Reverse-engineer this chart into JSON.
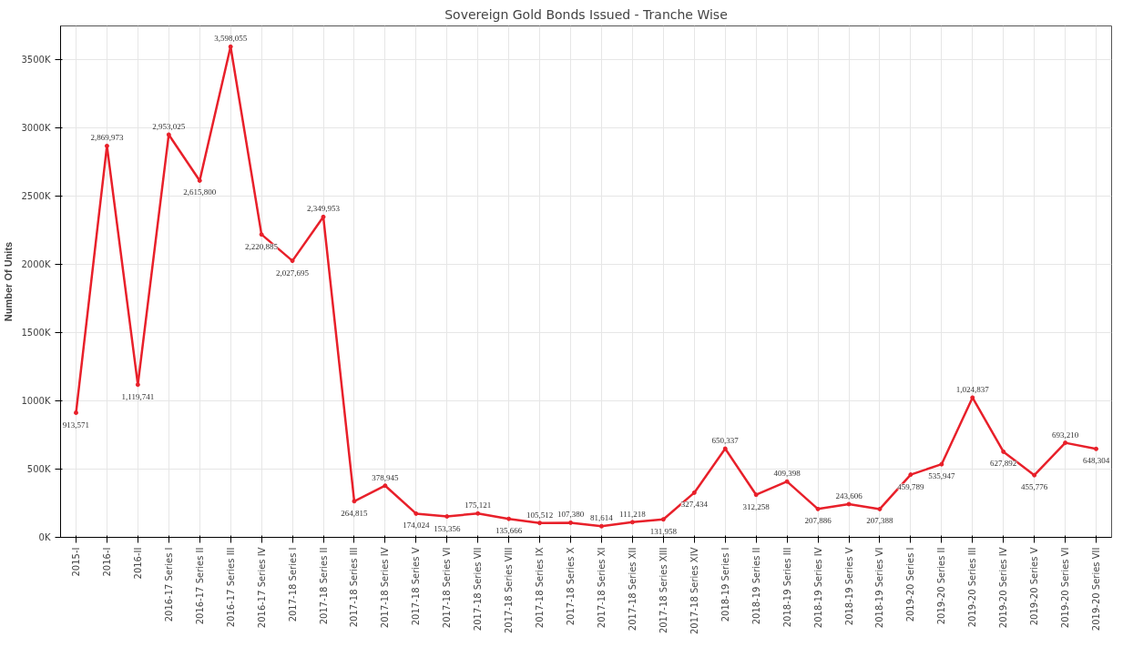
{
  "chart_data": {
    "type": "line",
    "title": "Sovereign Gold Bonds Issued - Tranche Wise",
    "ylabel": "Number Of Units",
    "categories": [
      "2015-I",
      "2016-I",
      "2016-II",
      "2016-17 Series I",
      "2016-17 Series II",
      "2016-17 Series III",
      "2016-17 Series IV",
      "2017-18 Series I",
      "2017-18 Series II",
      "2017-18 Series III",
      "2017-18 Series IV",
      "2017-18 Series V",
      "2017-18 Series VI",
      "2017-18 Series VII",
      "2017-18 Series VIII",
      "2017-18 Series IX",
      "2017-18 Series X",
      "2017-18 Series XI",
      "2017-18 Series XII",
      "2017-18 Series XIII",
      "2017-18 Series XIV",
      "2018-19 Series I",
      "2018-19 Series II",
      "2018-19 Series III",
      "2018-19 Series IV",
      "2018-19 Series V",
      "2018-19 Series VI",
      "2019-20 Series I",
      "2019-20 Series II",
      "2019-20 Series III",
      "2019-20 Series IV",
      "2019-20 Series V",
      "2019-20 Series VI",
      "2019-20 Series VII"
    ],
    "series": [
      {
        "color": "#e8202a",
        "values": [
          913571,
          2869973,
          1119741,
          2953025,
          2615800,
          3598055,
          2220885,
          2027695,
          2349953,
          264815,
          378945,
          174024,
          153356,
          175121,
          135666,
          105512,
          107380,
          81614,
          111218,
          131958,
          327434,
          650337,
          312258,
          409398,
          207886,
          243606,
          207388,
          459789,
          535947,
          1024837,
          627892,
          455776,
          693210,
          648304
        ],
        "value_labels": [
          "913,571",
          "2,869,973",
          "1,119,741",
          "2,953,025",
          "2,615,800",
          "3,598,055",
          "2,220,885",
          "2,027,695",
          "2,349,953",
          "264,815",
          "378,945",
          "174,024",
          "153,356",
          "175,121",
          "135,666",
          "105,512",
          "107,380",
          "81,614",
          "111,218",
          "131,958",
          "327,434",
          "650,337",
          "312,258",
          "409,398",
          "207,886",
          "243,606",
          "207,388",
          "459,789",
          "535,947",
          "1,024,837",
          "627,892",
          "455,776",
          "693,210",
          "648,304"
        ]
      }
    ],
    "ylim": [
      0,
      3750000
    ],
    "yticks": [
      {
        "value": 0,
        "label": "0K"
      },
      {
        "value": 500000,
        "label": "500K"
      },
      {
        "value": 1000000,
        "label": "1000K"
      },
      {
        "value": 1500000,
        "label": "1500K"
      },
      {
        "value": 2000000,
        "label": "2000K"
      },
      {
        "value": 2500000,
        "label": "2500K"
      },
      {
        "value": 3000000,
        "label": "3000K"
      },
      {
        "value": 3500000,
        "label": "3500K"
      }
    ],
    "grid": true,
    "marker": "circle",
    "line_style": "solid"
  }
}
